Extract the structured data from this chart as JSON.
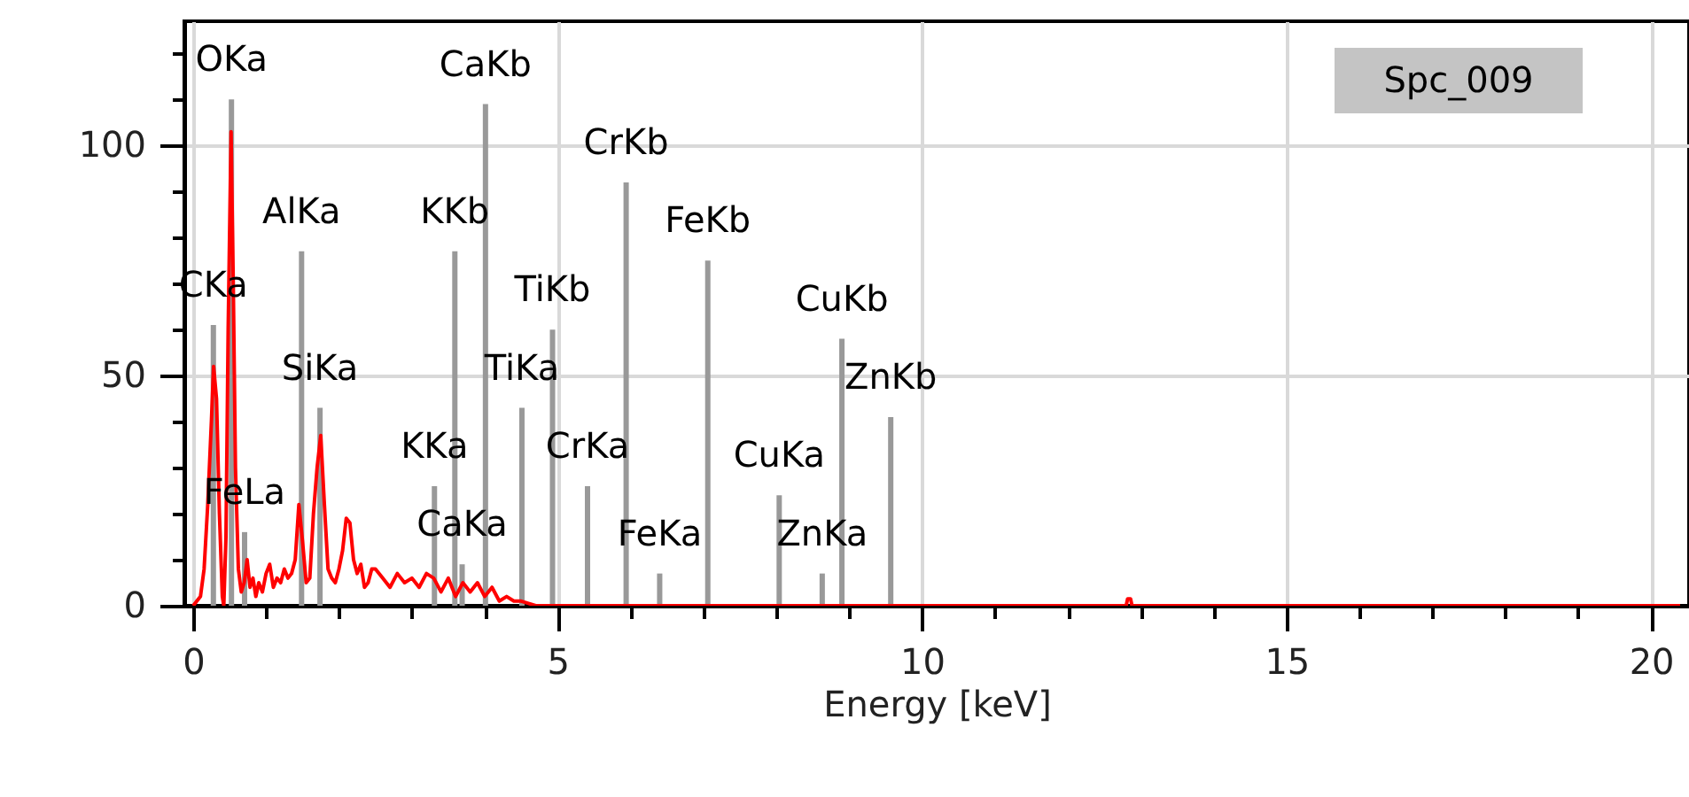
{
  "chart_data": {
    "type": "line",
    "xlabel": "Energy [keV]",
    "xlim": [
      0,
      20.4
    ],
    "xticks": [
      0,
      {
        "value": 1,
        "label": null
      },
      {
        "value": 2,
        "label": null
      },
      {
        "value": 3,
        "label": null
      },
      {
        "value": 4,
        "label": null
      },
      5,
      {
        "value": 6,
        "label": null
      },
      {
        "value": 7,
        "label": null
      },
      {
        "value": 8,
        "label": null
      },
      {
        "value": 9,
        "label": null
      },
      10,
      {
        "value": 11,
        "label": null
      },
      {
        "value": 12,
        "label": null
      },
      {
        "value": 13,
        "label": null
      },
      {
        "value": 14,
        "label": null
      },
      15,
      {
        "value": 16,
        "label": null
      },
      {
        "value": 17,
        "label": null
      },
      {
        "value": 18,
        "label": null
      },
      {
        "value": 19,
        "label": null
      },
      20
    ],
    "ylim": [
      0,
      127
    ],
    "yticks": [
      0,
      {
        "value": 10,
        "label": null
      },
      {
        "value": 20,
        "label": null
      },
      {
        "value": 30,
        "label": null
      },
      {
        "value": 40,
        "label": null
      },
      50,
      {
        "value": 60,
        "label": null
      },
      {
        "value": 70,
        "label": null
      },
      {
        "value": 80,
        "label": null
      },
      {
        "value": 90,
        "label": null
      },
      100,
      {
        "value": 110,
        "label": null
      },
      {
        "value": 120,
        "label": null
      }
    ],
    "grid": true,
    "annotations": [
      "Spc_009"
    ],
    "series": [
      {
        "type": "bar",
        "color": "#999999",
        "x": [
          0.277,
          0.525,
          0.705,
          1.487,
          1.74,
          3.31,
          3.59,
          3.69,
          4.01,
          4.51,
          4.93,
          5.41,
          5.94,
          6.4,
          7.06,
          8.04,
          8.63,
          8.9,
          9.57
        ],
        "values": [
          61,
          110,
          16,
          77,
          43,
          26,
          77,
          9,
          109,
          43,
          60,
          26,
          92,
          7,
          75,
          24,
          7,
          58,
          41
        ],
        "value_labels": [
          "CKa",
          "OKa",
          "FeLa",
          "AlKa",
          "SiKa",
          "KKa",
          "KKb",
          "CaKa",
          "CaKb",
          "TiKa",
          "TiKb",
          "CrKa",
          "CrKb",
          "FeKa",
          "FeKb",
          "CuKa",
          "ZnKa",
          "CuKb",
          "ZnKb"
        ]
      },
      {
        "color": "#ff0000",
        "x": [
          0.0,
          0.05,
          0.1,
          0.15,
          0.2,
          0.25,
          0.28,
          0.32,
          0.36,
          0.4,
          0.42,
          0.45,
          0.48,
          0.52,
          0.55,
          0.58,
          0.62,
          0.66,
          0.7,
          0.74,
          0.78,
          0.82,
          0.86,
          0.9,
          0.95,
          1.0,
          1.05,
          1.1,
          1.15,
          1.2,
          1.25,
          1.3,
          1.35,
          1.4,
          1.45,
          1.5,
          1.55,
          1.6,
          1.65,
          1.7,
          1.75,
          1.8,
          1.85,
          1.9,
          1.95,
          2.0,
          2.05,
          2.1,
          2.15,
          2.2,
          2.25,
          2.3,
          2.35,
          2.4,
          2.45,
          2.5,
          2.6,
          2.7,
          2.8,
          2.9,
          3.0,
          3.1,
          3.2,
          3.3,
          3.4,
          3.5,
          3.6,
          3.7,
          3.8,
          3.9,
          4.0,
          4.1,
          4.2,
          4.3,
          4.4,
          4.5,
          4.6,
          4.7,
          5.0,
          12.8,
          12.82,
          12.86,
          12.88,
          20.4
        ],
        "values": [
          0,
          1,
          2,
          8,
          22,
          40,
          52,
          45,
          20,
          2,
          0,
          15,
          60,
          103,
          70,
          30,
          8,
          3,
          5,
          10,
          4,
          6,
          2,
          5,
          3,
          7,
          9,
          4,
          6,
          5,
          8,
          6,
          7,
          10,
          22,
          14,
          5,
          6,
          20,
          30,
          37,
          22,
          8,
          6,
          5,
          8,
          12,
          19,
          18,
          10,
          7,
          9,
          4,
          5,
          8,
          8,
          6,
          4,
          7,
          5,
          6,
          4,
          7,
          6,
          3,
          6,
          2,
          5,
          3,
          5,
          2,
          4,
          1,
          2,
          1,
          1,
          0.5,
          0,
          0,
          0,
          1.5,
          1.5,
          0,
          0
        ]
      }
    ]
  }
}
